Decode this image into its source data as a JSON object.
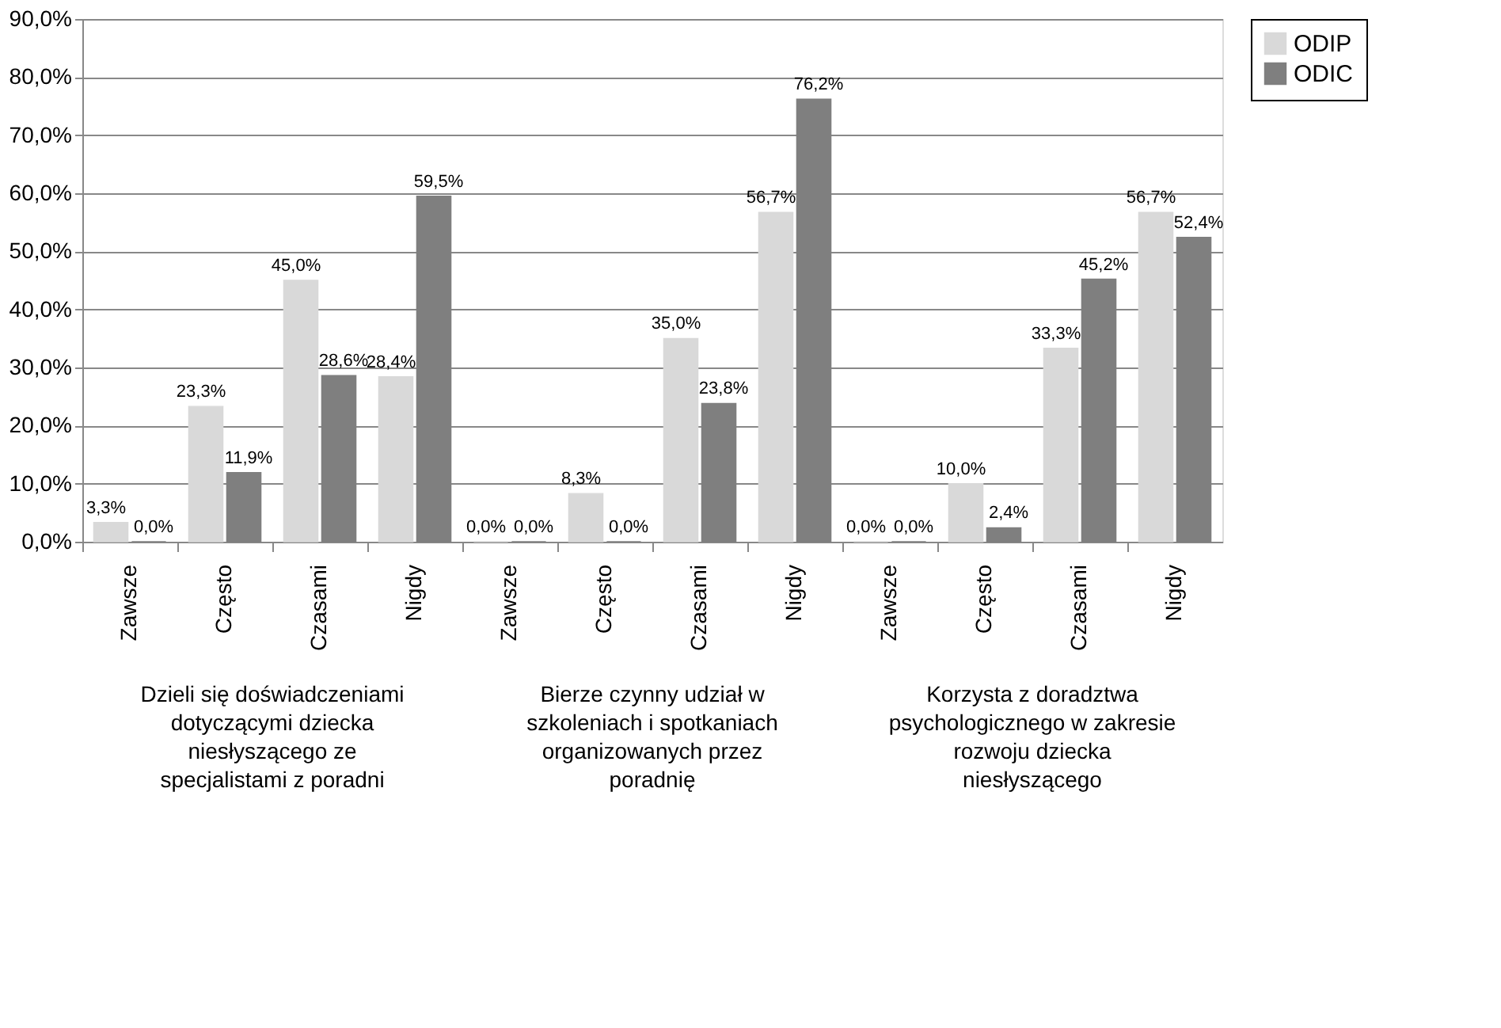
{
  "chart_data": {
    "type": "bar",
    "categories": [
      "Zawsze",
      "Często",
      "Czasami",
      "Nigdy",
      "Zawsze",
      "Często",
      "Czasami",
      "Nigdy",
      "Zawsze",
      "Często",
      "Czasami",
      "Nigdy"
    ],
    "series": [
      {
        "name": "ODIP",
        "color": "#d9d9d9",
        "values": [
          3.3,
          23.3,
          45.0,
          28.4,
          0.0,
          8.3,
          35.0,
          56.7,
          0.0,
          10.0,
          33.3,
          56.7
        ],
        "value_labels": [
          "3,3%",
          "23,3%",
          "45,0%",
          "28,4%",
          "0,0%",
          "8,3%",
          "35,0%",
          "56,7%",
          "0,0%",
          "10,0%",
          "33,3%",
          "56,7%"
        ]
      },
      {
        "name": "ODIC",
        "color": "#7f7f7f",
        "values": [
          0.0,
          11.9,
          28.6,
          59.5,
          0.0,
          0.0,
          23.8,
          76.2,
          0.0,
          2.4,
          45.2,
          52.4
        ],
        "value_labels": [
          "0,0%",
          "11,9%",
          "28,6%",
          "59,5%",
          "0,0%",
          "0,0%",
          "23,8%",
          "76,2%",
          "0,0%",
          "2,4%",
          "45,2%",
          "52,4%"
        ]
      }
    ],
    "annotations": [
      "Dzieli się doświadczeniami dotyczącymi dziecka niesłyszącego ze specjalistami  z poradni",
      "Bierze czynny udział w szkoleniach i spotkaniach organizowanych przez poradnię",
      "Korzysta z doradztwa psychologicznego w zakresie rozwoju dziecka niesłyszącego"
    ],
    "ylim": [
      0,
      90
    ],
    "yticks": [
      {
        "value": 0,
        "label": "0,0%"
      },
      {
        "value": 10,
        "label": "10,0%"
      },
      {
        "value": 20,
        "label": "20,0%"
      },
      {
        "value": 30,
        "label": "30,0%"
      },
      {
        "value": 40,
        "label": "40,0%"
      },
      {
        "value": 50,
        "label": "50,0%"
      },
      {
        "value": 60,
        "label": "60,0%"
      },
      {
        "value": 70,
        "label": "70,0%"
      },
      {
        "value": 80,
        "label": "80,0%"
      },
      {
        "value": 90,
        "label": "90,0%"
      }
    ],
    "grid": "y",
    "legend": "right"
  }
}
